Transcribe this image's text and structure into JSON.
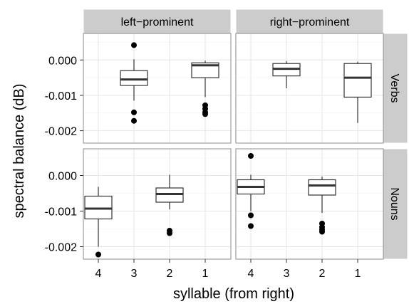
{
  "chart_data": {
    "type": "boxplot",
    "xlabel": "syllable (from right)",
    "ylabel": "spectral balance (dB)",
    "categories": [
      "4",
      "3",
      "2",
      "1"
    ],
    "y_ticks": [
      "0.000",
      "-0.001",
      "-0.002"
    ],
    "ylim": [
      -0.00235,
      0.00075
    ],
    "columns": [
      "left−prominent",
      "right−prominent"
    ],
    "rows": [
      "Verbs",
      "Nouns"
    ],
    "grid": true,
    "panels": [
      {
        "column": 0,
        "row": 0,
        "boxes": [
          {
            "category": "3",
            "q1": -0.00072,
            "median": -0.00055,
            "q3": -0.0003,
            "low": -0.00115,
            "high": 2e-05,
            "outliers": [
              0.00042,
              -0.00148,
              -0.00172
            ]
          },
          {
            "category": "1",
            "q1": -0.0005,
            "median": -0.00015,
            "q3": -8e-05,
            "low": -0.00105,
            "high": -2e-05,
            "outliers": [
              -0.00128,
              -0.00138,
              -0.00148,
              -0.00153
            ]
          }
        ]
      },
      {
        "column": 1,
        "row": 0,
        "boxes": [
          {
            "category": "3",
            "q1": -0.00045,
            "median": -0.00025,
            "q3": -0.0001,
            "low": -0.0008,
            "high": -3e-05,
            "outliers": []
          },
          {
            "category": "1",
            "q1": -0.00105,
            "median": -0.0005,
            "q3": -0.0001,
            "low": -0.00178,
            "high": -5e-05,
            "outliers": []
          }
        ]
      },
      {
        "column": 0,
        "row": 1,
        "boxes": [
          {
            "category": "4",
            "q1": -0.00122,
            "median": -0.00093,
            "q3": -0.00058,
            "low": -0.002,
            "high": -0.00032,
            "outliers": [
              -0.00222
            ]
          },
          {
            "category": "2",
            "q1": -0.00075,
            "median": -0.00052,
            "q3": -0.00035,
            "low": -0.00095,
            "high": 2e-05,
            "outliers": [
              -0.00155,
              -0.00162
            ]
          }
        ]
      },
      {
        "column": 1,
        "row": 1,
        "boxes": [
          {
            "category": "4",
            "q1": -0.00052,
            "median": -0.00032,
            "q3": -0.00012,
            "low": -0.001,
            "high": 2e-05,
            "outliers": [
              0.00055,
              -0.00112,
              -0.00142
            ]
          },
          {
            "category": "2",
            "q1": -0.00055,
            "median": -0.00028,
            "q3": -0.00012,
            "low": -0.00105,
            "high": -3e-05,
            "outliers": [
              -0.00135,
              -0.00145,
              -0.00152,
              -0.00158
            ]
          }
        ]
      }
    ]
  }
}
